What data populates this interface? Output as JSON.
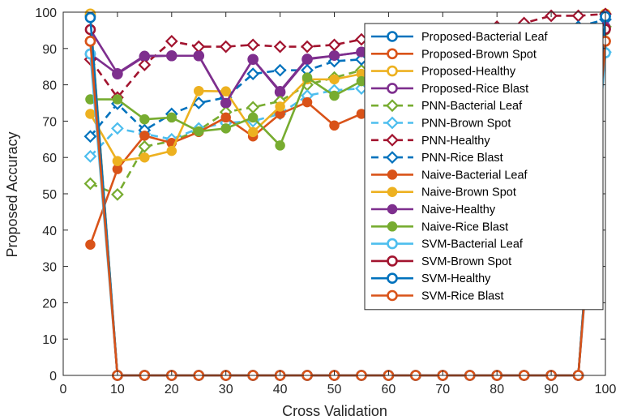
{
  "chart_data": {
    "type": "line",
    "xlabel": "Cross Validation",
    "ylabel": "Proposed Accuracy",
    "xlim": [
      0,
      100
    ],
    "ylim": [
      0,
      100
    ],
    "xticks": [
      "0",
      "10",
      "20",
      "30",
      "40",
      "50",
      "60",
      "70",
      "80",
      "90",
      "100"
    ],
    "yticks": [
      "0",
      "10",
      "20",
      "30",
      "40",
      "50",
      "60",
      "70",
      "80",
      "90",
      "100"
    ],
    "grid": false,
    "legend_position": "top-right",
    "x": [
      5,
      10,
      15,
      20,
      25,
      30,
      35,
      40,
      45,
      50,
      55,
      60,
      65,
      70,
      75,
      80,
      85,
      90,
      95,
      100
    ],
    "series": [
      {
        "name": "Proposed-Bacterial Leaf",
        "color": "#0072BD",
        "dash": "solid",
        "marker": "circle",
        "hollow": true,
        "values": [
          99,
          0,
          0,
          0,
          0,
          0,
          0,
          0,
          0,
          0,
          0,
          0,
          0,
          0,
          0,
          0,
          0,
          0,
          0,
          99
        ]
      },
      {
        "name": "Proposed-Brown Spot",
        "color": "#D95319",
        "dash": "solid",
        "marker": "circle",
        "hollow": true,
        "values": [
          92,
          0,
          0,
          0,
          0,
          0,
          0,
          0,
          0,
          0,
          0,
          0,
          0,
          0,
          0,
          0,
          0,
          0,
          0,
          92
        ]
      },
      {
        "name": "Proposed-Healthy",
        "color": "#EDB120",
        "dash": "solid",
        "marker": "circle",
        "hollow": true,
        "values": [
          99.5,
          0,
          0,
          0,
          0,
          0,
          0,
          0,
          0,
          0,
          0,
          0,
          0,
          0,
          0,
          0,
          0,
          0,
          0,
          99.5
        ]
      },
      {
        "name": "Proposed-Rice Blast",
        "color": "#7E2F8E",
        "dash": "solid",
        "marker": "circle",
        "hollow": true,
        "values": [
          88.5,
          83,
          87.8,
          88,
          88,
          75,
          87,
          78,
          87,
          88,
          89,
          90,
          90,
          90,
          91,
          92,
          93,
          94,
          95,
          95.5
        ]
      },
      {
        "name": "PNN-Bacterial Leaf",
        "color": "#77AC30",
        "dash": "dashed",
        "marker": "diamond",
        "hollow": true,
        "values": [
          52.8,
          49.8,
          63,
          64.5,
          67.5,
          72.5,
          73.8,
          75.5,
          80,
          82,
          84,
          85,
          87,
          88,
          89,
          90,
          91,
          92,
          94,
          96
        ]
      },
      {
        "name": "PNN-Brown Spot",
        "color": "#4DBEEE",
        "dash": "dashed",
        "marker": "diamond",
        "hollow": true,
        "values": [
          60.3,
          68,
          66.5,
          65,
          68,
          69.5,
          70,
          72,
          77,
          78.5,
          79,
          81,
          82,
          84,
          85,
          86,
          88,
          90,
          92,
          89
        ]
      },
      {
        "name": "PNN-Healthy",
        "color": "#A2142F",
        "dash": "dashed",
        "marker": "diamond",
        "hollow": true,
        "values": [
          87,
          76.5,
          85.5,
          92,
          90.5,
          90.5,
          91,
          90.5,
          90.5,
          91,
          92.5,
          93,
          94,
          94.5,
          95,
          96,
          97,
          99,
          99,
          99.5
        ]
      },
      {
        "name": "PNN-Rice Blast",
        "color": "#0072BD",
        "dash": "dashed",
        "marker": "diamond",
        "hollow": true,
        "values": [
          65.8,
          74.8,
          67.5,
          72,
          75,
          76.5,
          83,
          84,
          84,
          86.5,
          87,
          88,
          89,
          90,
          91,
          92,
          93,
          94,
          96,
          98
        ]
      },
      {
        "name": "Naive-Bacterial Leaf",
        "color": "#D95319",
        "dash": "solid",
        "marker": "circle",
        "hollow": false,
        "values": [
          36,
          56.8,
          66,
          64,
          67,
          71,
          65.8,
          72,
          75.2,
          68.8,
          72,
          74,
          75,
          77,
          79,
          81,
          83,
          85,
          87,
          92
        ]
      },
      {
        "name": "Naive-Brown Spot",
        "color": "#EDB120",
        "dash": "solid",
        "marker": "circle",
        "hollow": false,
        "values": [
          72,
          59,
          60,
          61.8,
          78.3,
          78.2,
          67,
          74,
          81.5,
          81.5,
          83,
          84,
          85,
          86,
          87,
          88,
          89,
          90,
          92,
          95
        ]
      },
      {
        "name": "Naive-Healthy",
        "color": "#7E2F8E",
        "dash": "solid",
        "marker": "circle",
        "hollow": false,
        "values": [
          95.2,
          83.2,
          88,
          88,
          88,
          75,
          87,
          78.3,
          87.2,
          88,
          89,
          90,
          90,
          91,
          91,
          92,
          93,
          94,
          95,
          96
        ]
      },
      {
        "name": "Naive-Rice Blast",
        "color": "#77AC30",
        "dash": "solid",
        "marker": "circle",
        "hollow": false,
        "values": [
          76,
          76,
          70.5,
          71,
          67.2,
          68,
          71,
          63.3,
          82,
          77,
          81,
          83,
          84,
          85,
          86,
          87,
          88,
          89,
          91,
          95
        ]
      },
      {
        "name": "SVM-Bacterial Leaf",
        "color": "#4DBEEE",
        "dash": "solid",
        "marker": "circle",
        "hollow": true,
        "values": [
          88.5,
          0,
          0,
          0,
          0,
          0,
          0,
          0,
          0,
          0,
          0,
          0,
          0,
          0,
          0,
          0,
          0,
          0,
          0,
          88.8
        ]
      },
      {
        "name": "SVM-Brown Spot",
        "color": "#A2142F",
        "dash": "solid",
        "marker": "circle",
        "hollow": true,
        "values": [
          95.2,
          0,
          0,
          0,
          0,
          0,
          0,
          0,
          0,
          0,
          0,
          0,
          0,
          0,
          0,
          0,
          0,
          0,
          0,
          95.3
        ]
      },
      {
        "name": "SVM-Healthy",
        "color": "#0072BD",
        "dash": "solid",
        "marker": "circle",
        "hollow": true,
        "values": [
          98.5,
          0,
          0,
          0,
          0,
          0,
          0,
          0,
          0,
          0,
          0,
          0,
          0,
          0,
          0,
          0,
          0,
          0,
          0,
          98.8
        ]
      },
      {
        "name": "SVM-Rice Blast",
        "color": "#D95319",
        "dash": "solid",
        "marker": "circle",
        "hollow": true,
        "values": [
          92,
          0,
          0,
          0,
          0,
          0,
          0,
          0,
          0,
          0,
          0,
          0,
          0,
          0,
          0,
          0,
          0,
          0,
          0,
          92
        ]
      }
    ]
  }
}
